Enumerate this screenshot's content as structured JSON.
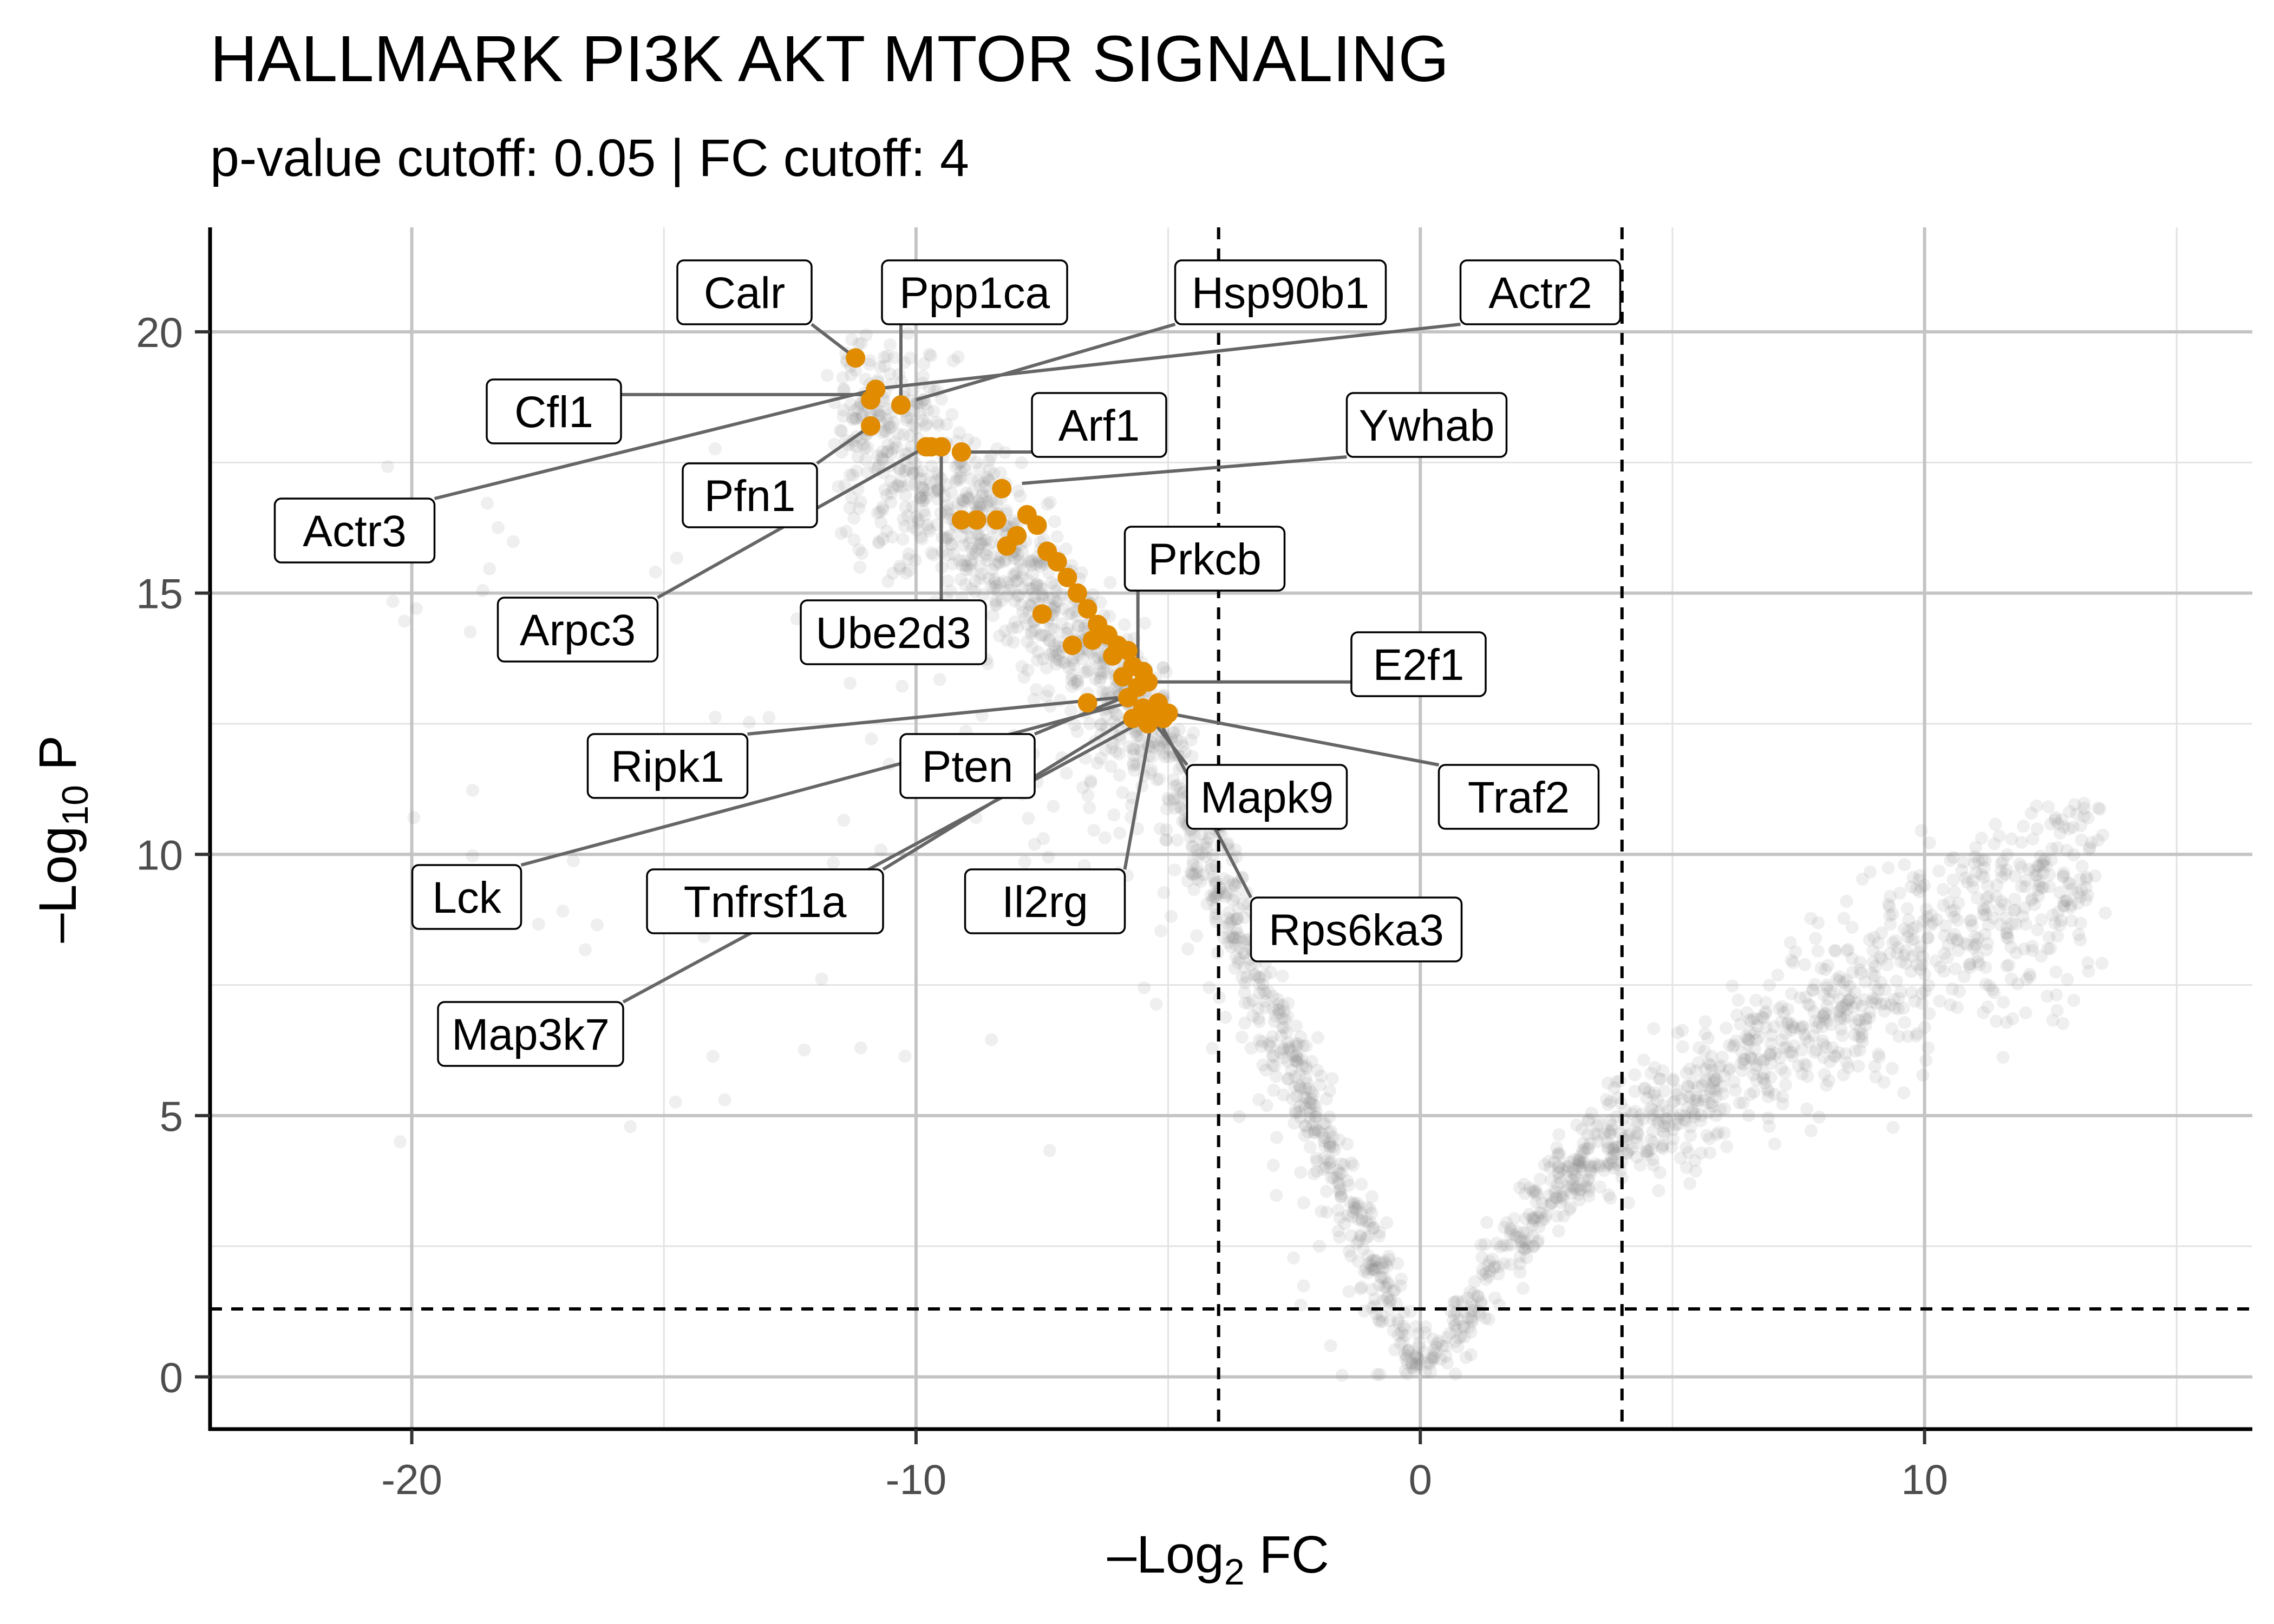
{
  "chart_data": {
    "type": "scatter",
    "title": "HALLMARK PI3K AKT MTOR SIGNALING",
    "subtitle": "p-value cutoff: 0.05 | FC cutoff: 4",
    "xlabel": {
      "prefix": "–Log",
      "sub": "2",
      "suffix": " FC"
    },
    "ylabel": {
      "prefix": "–Log",
      "sub": "10",
      "suffix": " P"
    },
    "xlim": [
      -24,
      16.5
    ],
    "ylim": [
      -1,
      22
    ],
    "x_ticks": [
      -20,
      -10,
      0,
      10
    ],
    "x_tick_labels": [
      "-20",
      "-10",
      "0",
      "10"
    ],
    "y_ticks": [
      0,
      5,
      10,
      15,
      20
    ],
    "y_tick_labels": [
      "0",
      "5",
      "10",
      "15",
      "20"
    ],
    "grid": true,
    "cutoff_lines": {
      "x": [
        -4,
        4
      ],
      "y": 1.3
    },
    "colors": {
      "background": "#808080",
      "highlight": "#E08B00",
      "connector": "#666666",
      "cutoff": "#000000"
    },
    "highlighted_points": [
      {
        "x": -11.2,
        "y": 19.5
      },
      {
        "x": -10.8,
        "y": 18.9
      },
      {
        "x": -10.9,
        "y": 18.7
      },
      {
        "x": -10.3,
        "y": 18.6
      },
      {
        "x": -10.9,
        "y": 18.2
      },
      {
        "x": -9.8,
        "y": 17.8
      },
      {
        "x": -9.5,
        "y": 17.8
      },
      {
        "x": -9.1,
        "y": 17.7
      },
      {
        "x": -9.7,
        "y": 17.8
      },
      {
        "x": -8.3,
        "y": 17.0
      },
      {
        "x": -9.1,
        "y": 16.4
      },
      {
        "x": -8.8,
        "y": 16.4
      },
      {
        "x": -8.4,
        "y": 16.4
      },
      {
        "x": -7.8,
        "y": 16.5
      },
      {
        "x": -7.6,
        "y": 16.3
      },
      {
        "x": -8.0,
        "y": 16.1
      },
      {
        "x": -8.2,
        "y": 15.9
      },
      {
        "x": -7.4,
        "y": 15.8
      },
      {
        "x": -7.2,
        "y": 15.6
      },
      {
        "x": -7.0,
        "y": 15.3
      },
      {
        "x": -6.8,
        "y": 15.0
      },
      {
        "x": -6.6,
        "y": 14.7
      },
      {
        "x": -7.5,
        "y": 14.6
      },
      {
        "x": -6.4,
        "y": 14.4
      },
      {
        "x": -6.2,
        "y": 14.2
      },
      {
        "x": -6.5,
        "y": 14.1
      },
      {
        "x": -6.0,
        "y": 14.0
      },
      {
        "x": -5.8,
        "y": 13.9
      },
      {
        "x": -6.9,
        "y": 14.0
      },
      {
        "x": -6.1,
        "y": 13.8
      },
      {
        "x": -5.7,
        "y": 13.6
      },
      {
        "x": -5.5,
        "y": 13.5
      },
      {
        "x": -5.9,
        "y": 13.4
      },
      {
        "x": -5.4,
        "y": 13.3
      },
      {
        "x": -5.6,
        "y": 13.2
      },
      {
        "x": -5.8,
        "y": 13.0
      },
      {
        "x": -5.2,
        "y": 12.9
      },
      {
        "x": -6.6,
        "y": 12.9
      },
      {
        "x": -5.5,
        "y": 12.8
      },
      {
        "x": -5.3,
        "y": 12.7
      },
      {
        "x": -5.7,
        "y": 12.6
      },
      {
        "x": -5.1,
        "y": 12.6
      },
      {
        "x": -5.4,
        "y": 12.5
      },
      {
        "x": -5.0,
        "y": 12.7
      }
    ],
    "labels": [
      {
        "text": "Calr",
        "x": -11.2,
        "y": 19.5
      },
      {
        "text": "Ppp1ca",
        "x": -10.3,
        "y": 18.6
      },
      {
        "text": "Hsp90b1",
        "x": -10.0,
        "y": 18.7
      },
      {
        "text": "Actr2",
        "x": -10.9,
        "y": 18.9
      },
      {
        "text": "Cfl1",
        "x": -10.8,
        "y": 18.8
      },
      {
        "text": "Actr3",
        "x": -10.8,
        "y": 18.9
      },
      {
        "text": "Arf1",
        "x": -9.1,
        "y": 17.7
      },
      {
        "text": "Ywhab",
        "x": -7.9,
        "y": 17.1
      },
      {
        "text": "Pfn1",
        "x": -10.9,
        "y": 18.2
      },
      {
        "text": "Arpc3",
        "x": -9.8,
        "y": 17.8
      },
      {
        "text": "Ube2d3",
        "x": -9.5,
        "y": 17.8
      },
      {
        "text": "Prkcb",
        "x": -5.6,
        "y": 13.4
      },
      {
        "text": "E2f1",
        "x": -5.4,
        "y": 13.3
      },
      {
        "text": "Ripk1",
        "x": -6.0,
        "y": 13.0
      },
      {
        "text": "Pten",
        "x": -5.9,
        "y": 13.0
      },
      {
        "text": "Mapk9",
        "x": -5.5,
        "y": 12.8
      },
      {
        "text": "Traf2",
        "x": -5.0,
        "y": 12.7
      },
      {
        "text": "Lck",
        "x": -5.8,
        "y": 12.9
      },
      {
        "text": "Tnfrsf1a",
        "x": -5.6,
        "y": 12.7
      },
      {
        "text": "Il2rg",
        "x": -5.3,
        "y": 12.7
      },
      {
        "text": "Rps6ka3",
        "x": -5.2,
        "y": 12.6
      },
      {
        "text": "Map3k7",
        "x": -5.4,
        "y": 12.6
      }
    ]
  }
}
